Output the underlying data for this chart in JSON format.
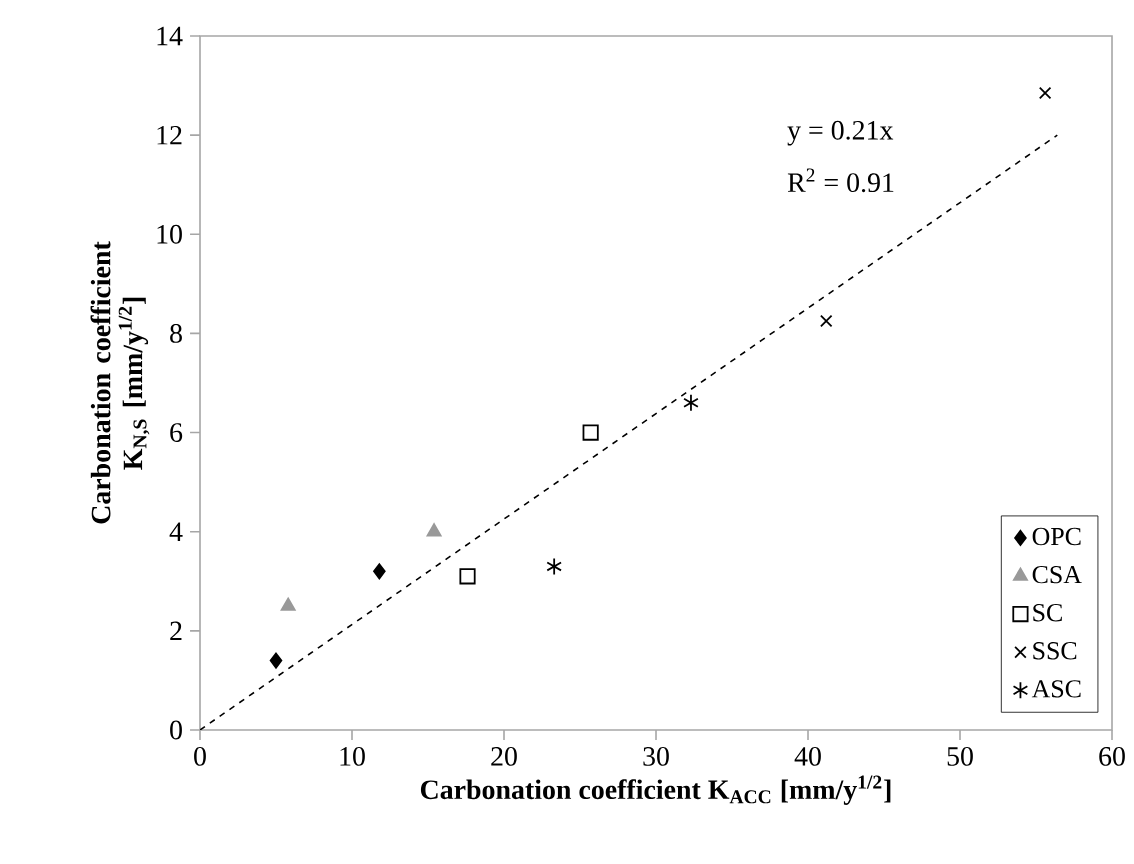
{
  "chart_data": {
    "type": "scatter",
    "xlabel": "Carbonation coefficient K$_{ACC}$ [mm/y$^{1/2}$]",
    "ylabel": "Carbonation coefficient K$_{N,S}$ [mm/y$^{1/2}$]",
    "xlim": [
      0,
      60
    ],
    "xticks": [
      0,
      10,
      20,
      30,
      40,
      50,
      60
    ],
    "ylim": [
      0,
      14
    ],
    "yticks": [
      0,
      2,
      4,
      6,
      8,
      10,
      12,
      14
    ],
    "grid": false,
    "legend": "bottom right",
    "annotations": [
      "y = 0.21x",
      "R$^{2}$ = 0.91"
    ],
    "series": [
      {
        "name": "OPC",
        "color": "#000000",
        "marker": "diamond",
        "x": [
          5.0,
          11.8
        ],
        "values": [
          1.4,
          3.2
        ]
      },
      {
        "name": "CSA",
        "color": "#999999",
        "marker": "triangle",
        "x": [
          5.8,
          15.4
        ],
        "values": [
          2.5,
          4.0
        ]
      },
      {
        "name": "SC",
        "color": "#000000",
        "marker": "square",
        "x": [
          17.6,
          25.7
        ],
        "values": [
          3.1,
          6.0
        ]
      },
      {
        "name": "SSC",
        "color": "#000000",
        "marker": "cross",
        "x": [
          41.2,
          55.6
        ],
        "values": [
          8.25,
          12.85
        ]
      },
      {
        "name": "ASC",
        "color": "#000000",
        "x": [
          23.3,
          32.3
        ],
        "values": [
          3.3,
          6.6
        ]
      },
      {
        "type": "line",
        "color": "#000000",
        "marker": "none",
        "line_style": "dashed",
        "x": [
          0,
          56.4
        ],
        "values": [
          0,
          12.0
        ]
      }
    ]
  }
}
